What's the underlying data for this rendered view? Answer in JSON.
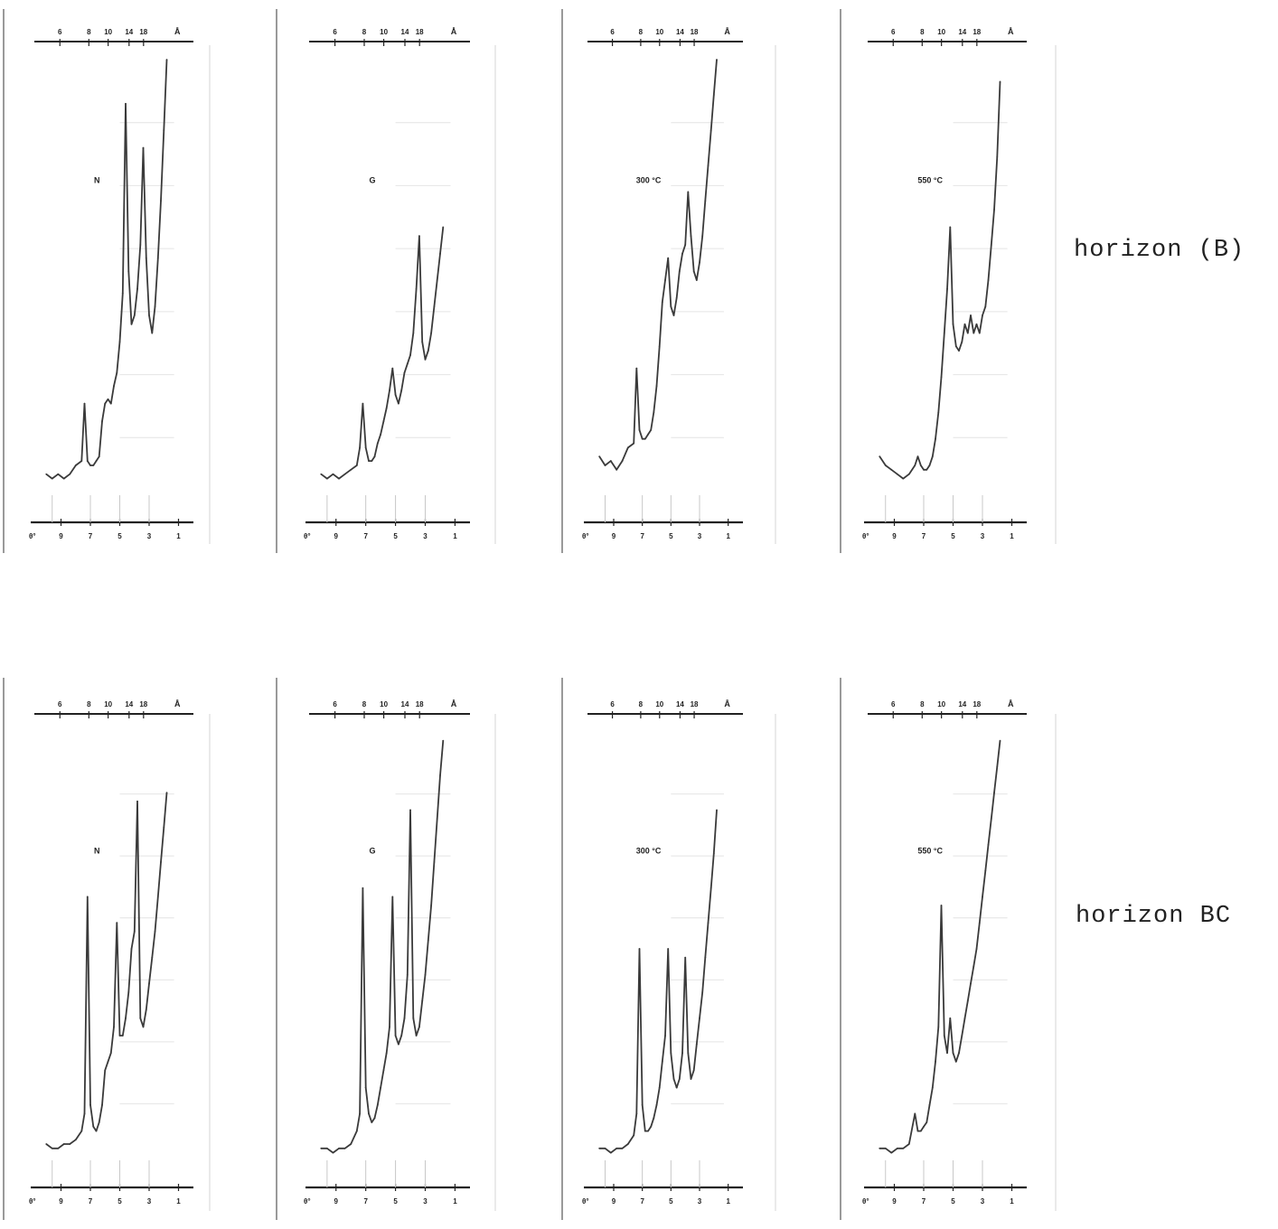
{
  "figure": {
    "row_labels": [
      "horizon (B)",
      "horizon BC"
    ]
  },
  "chart_data": [
    {
      "type": "line",
      "row": 0,
      "col": 0,
      "panel_label": "N",
      "top_axis": {
        "ticks": [
          "6",
          "8",
          "10",
          "14",
          "18"
        ],
        "unit": "Å"
      },
      "bottom_axis": {
        "ticks": [
          "9",
          "7",
          "5",
          "3",
          "1"
        ],
        "origin_label": "θ°"
      },
      "x": [
        10,
        9.6,
        9.2,
        8.8,
        8.4,
        8.0,
        7.6,
        7.4,
        7.2,
        7.0,
        6.8,
        6.6,
        6.4,
        6.2,
        6.0,
        5.8,
        5.6,
        5.4,
        5.2,
        5.0,
        4.8,
        4.6,
        4.4,
        4.2,
        4.0,
        3.8,
        3.6,
        3.4,
        3.2,
        3.0,
        2.8,
        2.6,
        2.4,
        2.2,
        2.0,
        1.8
      ],
      "y": [
        6,
        5,
        6,
        5,
        6,
        8,
        9,
        22,
        9,
        8,
        8,
        9,
        10,
        18,
        22,
        23,
        22,
        26,
        29,
        36,
        47,
        90,
        52,
        40,
        42,
        48,
        58,
        80,
        55,
        42,
        38,
        44,
        55,
        68,
        84,
        100
      ]
    },
    {
      "type": "line",
      "row": 0,
      "col": 1,
      "panel_label": "G",
      "top_axis": {
        "ticks": [
          "6",
          "8",
          "10",
          "14",
          "18"
        ],
        "unit": "Å"
      },
      "bottom_axis": {
        "ticks": [
          "9",
          "7",
          "5",
          "3",
          "1"
        ],
        "origin_label": "θ°"
      },
      "x": [
        10,
        9.6,
        9.2,
        8.8,
        8.4,
        8.0,
        7.6,
        7.4,
        7.2,
        7.0,
        6.8,
        6.6,
        6.4,
        6.2,
        6.0,
        5.8,
        5.6,
        5.4,
        5.2,
        5.0,
        4.8,
        4.6,
        4.4,
        4.2,
        4.0,
        3.8,
        3.6,
        3.4,
        3.2,
        3.0,
        2.8,
        2.6,
        2.4,
        2.2,
        2.0,
        1.8
      ],
      "y": [
        6,
        5,
        6,
        5,
        6,
        7,
        8,
        12,
        22,
        12,
        9,
        9,
        10,
        13,
        15,
        18,
        21,
        25,
        30,
        24,
        22,
        25,
        29,
        31,
        33,
        38,
        48,
        60,
        36,
        32,
        34,
        38,
        44,
        50,
        56,
        62
      ]
    },
    {
      "type": "line",
      "row": 0,
      "col": 2,
      "panel_label": "300 °C",
      "top_axis": {
        "ticks": [
          "6",
          "8",
          "10",
          "14",
          "18"
        ],
        "unit": "Å"
      },
      "bottom_axis": {
        "ticks": [
          "9",
          "7",
          "5",
          "3",
          "1"
        ],
        "origin_label": "θ°"
      },
      "x": [
        10,
        9.6,
        9.2,
        8.8,
        8.4,
        8.0,
        7.6,
        7.4,
        7.2,
        7.0,
        6.8,
        6.6,
        6.4,
        6.2,
        6.0,
        5.8,
        5.6,
        5.4,
        5.2,
        5.0,
        4.8,
        4.6,
        4.4,
        4.2,
        4.0,
        3.8,
        3.6,
        3.4,
        3.2,
        3.0,
        2.8,
        2.6,
        2.4,
        2.2,
        2.0,
        1.8
      ],
      "y": [
        10,
        8,
        9,
        7,
        9,
        12,
        13,
        30,
        16,
        14,
        14,
        15,
        16,
        20,
        26,
        35,
        45,
        50,
        55,
        44,
        42,
        46,
        52,
        56,
        58,
        70,
        60,
        52,
        50,
        54,
        60,
        68,
        76,
        84,
        92,
        100
      ]
    },
    {
      "type": "line",
      "row": 0,
      "col": 3,
      "panel_label": "550 °C",
      "top_axis": {
        "ticks": [
          "6",
          "8",
          "10",
          "14",
          "18"
        ],
        "unit": "Å"
      },
      "bottom_axis": {
        "ticks": [
          "9",
          "7",
          "5",
          "3",
          "1"
        ],
        "origin_label": "θ°"
      },
      "x": [
        10,
        9.6,
        9.2,
        8.8,
        8.4,
        8.0,
        7.6,
        7.4,
        7.2,
        7.0,
        6.8,
        6.6,
        6.4,
        6.2,
        6.0,
        5.8,
        5.6,
        5.4,
        5.2,
        5.0,
        4.8,
        4.6,
        4.4,
        4.2,
        4.0,
        3.8,
        3.6,
        3.4,
        3.2,
        3.0,
        2.8,
        2.6,
        2.4,
        2.2,
        2.0,
        1.8
      ],
      "y": [
        10,
        8,
        7,
        6,
        5,
        6,
        8,
        10,
        8,
        7,
        7,
        8,
        10,
        14,
        20,
        28,
        38,
        48,
        62,
        40,
        35,
        34,
        36,
        40,
        38,
        42,
        38,
        40,
        38,
        42,
        44,
        50,
        58,
        66,
        78,
        95
      ]
    },
    {
      "type": "line",
      "row": 1,
      "col": 0,
      "panel_label": "N",
      "top_axis": {
        "ticks": [
          "6",
          "8",
          "10",
          "14",
          "18"
        ],
        "unit": "Å"
      },
      "bottom_axis": {
        "ticks": [
          "9",
          "7",
          "5",
          "3",
          "1"
        ],
        "origin_label": "θ°"
      },
      "x": [
        10,
        9.6,
        9.2,
        8.8,
        8.4,
        8.0,
        7.6,
        7.4,
        7.2,
        7.0,
        6.8,
        6.6,
        6.4,
        6.2,
        6.0,
        5.8,
        5.6,
        5.4,
        5.2,
        5.0,
        4.8,
        4.6,
        4.4,
        4.2,
        4.0,
        3.8,
        3.6,
        3.4,
        3.2,
        3.0,
        2.8,
        2.6,
        2.4,
        2.2,
        2.0,
        1.8
      ],
      "y": [
        5,
        4,
        4,
        5,
        5,
        6,
        8,
        12,
        62,
        14,
        9,
        8,
        10,
        14,
        22,
        24,
        26,
        32,
        56,
        30,
        30,
        34,
        40,
        50,
        54,
        84,
        34,
        32,
        36,
        42,
        48,
        54,
        62,
        70,
        78,
        86
      ]
    },
    {
      "type": "line",
      "row": 1,
      "col": 1,
      "panel_label": "G",
      "top_axis": {
        "ticks": [
          "6",
          "8",
          "10",
          "14",
          "18"
        ],
        "unit": "Å"
      },
      "bottom_axis": {
        "ticks": [
          "9",
          "7",
          "5",
          "3",
          "1"
        ],
        "origin_label": "θ°"
      },
      "x": [
        10,
        9.6,
        9.2,
        8.8,
        8.4,
        8.0,
        7.6,
        7.4,
        7.2,
        7.0,
        6.8,
        6.6,
        6.4,
        6.2,
        6.0,
        5.8,
        5.6,
        5.4,
        5.2,
        5.0,
        4.8,
        4.6,
        4.4,
        4.2,
        4.0,
        3.8,
        3.6,
        3.4,
        3.2,
        3.0,
        2.8,
        2.6,
        2.4,
        2.2,
        2.0,
        1.8
      ],
      "y": [
        4,
        4,
        3,
        4,
        4,
        5,
        8,
        12,
        64,
        18,
        12,
        10,
        11,
        14,
        18,
        22,
        26,
        32,
        62,
        30,
        28,
        30,
        34,
        44,
        82,
        34,
        30,
        32,
        38,
        44,
        52,
        60,
        70,
        80,
        90,
        98
      ]
    },
    {
      "type": "line",
      "row": 1,
      "col": 2,
      "panel_label": "300 °C",
      "top_axis": {
        "ticks": [
          "6",
          "8",
          "10",
          "14",
          "18"
        ],
        "unit": "Å"
      },
      "bottom_axis": {
        "ticks": [
          "9",
          "7",
          "5",
          "3",
          "1"
        ],
        "origin_label": "θ°"
      },
      "x": [
        10,
        9.6,
        9.2,
        8.8,
        8.4,
        8.0,
        7.6,
        7.4,
        7.2,
        7.0,
        6.8,
        6.6,
        6.4,
        6.2,
        6.0,
        5.8,
        5.6,
        5.4,
        5.2,
        5.0,
        4.8,
        4.6,
        4.4,
        4.2,
        4.0,
        3.8,
        3.6,
        3.4,
        3.2,
        3.0,
        2.8,
        2.6,
        2.4,
        2.2,
        2.0,
        1.8
      ],
      "y": [
        4,
        4,
        3,
        4,
        4,
        5,
        7,
        12,
        50,
        14,
        8,
        8,
        9,
        11,
        14,
        18,
        24,
        30,
        50,
        26,
        20,
        18,
        20,
        26,
        48,
        26,
        20,
        22,
        28,
        34,
        40,
        48,
        56,
        64,
        72,
        82
      ]
    },
    {
      "type": "line",
      "row": 1,
      "col": 3,
      "panel_label": "550 °C",
      "top_axis": {
        "ticks": [
          "6",
          "8",
          "10",
          "14",
          "18"
        ],
        "unit": "Å"
      },
      "bottom_axis": {
        "ticks": [
          "9",
          "7",
          "5",
          "3",
          "1"
        ],
        "origin_label": "θ°"
      },
      "x": [
        10,
        9.6,
        9.2,
        8.8,
        8.4,
        8.0,
        7.6,
        7.4,
        7.2,
        7.0,
        6.8,
        6.6,
        6.4,
        6.2,
        6.0,
        5.8,
        5.6,
        5.4,
        5.2,
        5.0,
        4.8,
        4.6,
        4.4,
        4.2,
        4.0,
        3.8,
        3.6,
        3.4,
        3.2,
        3.0,
        2.8,
        2.6,
        2.4,
        2.2,
        2.0,
        1.8
      ],
      "y": [
        4,
        4,
        3,
        4,
        4,
        5,
        12,
        8,
        8,
        9,
        10,
        14,
        18,
        24,
        32,
        60,
        30,
        26,
        34,
        26,
        24,
        26,
        30,
        34,
        38,
        42,
        46,
        50,
        56,
        62,
        68,
        74,
        80,
        86,
        92,
        98
      ]
    }
  ]
}
